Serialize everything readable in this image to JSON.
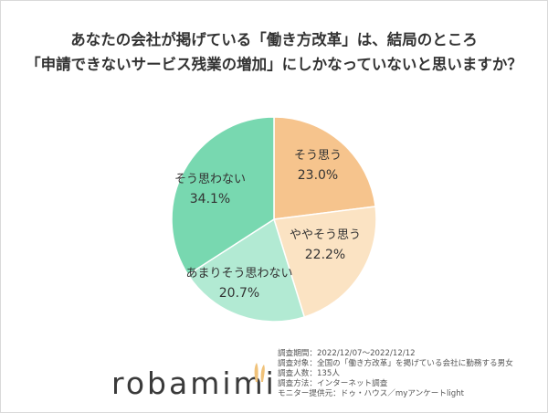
{
  "title_lines": [
    "あなたの会社が掲げている「働き方改革」は、結局のところ",
    "「申請できないサービス残業の増加」にしかなっていないと思いますか？"
  ],
  "chart_data": {
    "type": "pie",
    "slices": [
      {
        "label": "そう思う",
        "value": 23.0,
        "value_label": "23.0%",
        "color": "#f6c48d"
      },
      {
        "label": "ややそう思う",
        "value": 22.2,
        "value_label": "22.2%",
        "color": "#fbe3c3"
      },
      {
        "label": "あまりそう思わない",
        "value": 20.7,
        "value_label": "20.7%",
        "color": "#b2ead3"
      },
      {
        "label": "そう思わない",
        "value": 34.1,
        "value_label": "34.1%",
        "color": "#78d8b0"
      }
    ],
    "start": "12 o'clock",
    "direction": "clockwise"
  },
  "brand": "robamimi",
  "brand_color": "#f0c27a",
  "survey_info": [
    "調査期間：2022/12/07～2022/12/12",
    "調査対象：全国の「働き方改革」を掲げている会社に勤務する男女",
    "調査人数：135人",
    "調査方法：インターネット調査",
    "モニター提供元：ドゥ・ハウス／myアンケートlight"
  ]
}
